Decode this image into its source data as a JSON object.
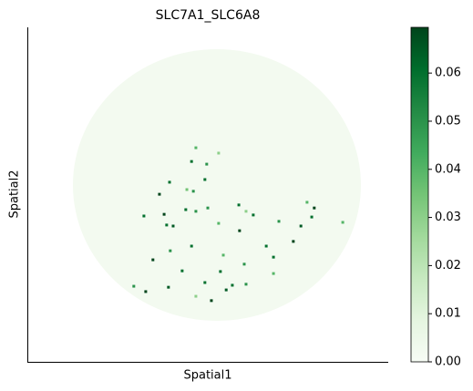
{
  "chart_data": {
    "type": "scatter",
    "title": "SLC7A1_SLC6A8",
    "xlabel": "Spatial1",
    "ylabel": "Spatial2",
    "xlim": [
      0,
      100
    ],
    "ylim": [
      0,
      100
    ],
    "x": [
      46.7,
      45.5,
      49.7,
      53.0,
      36.6,
      39.4,
      44.2,
      46.0,
      49.2,
      50.0,
      32.3,
      37.9,
      40.4,
      38.6,
      43.9,
      46.7,
      58.6,
      58.8,
      60.6,
      62.6,
      79.5,
      77.5,
      78.8,
      75.8,
      69.7,
      66.2,
      73.7,
      68.2,
      45.5,
      39.6,
      34.8,
      42.9,
      54.3,
      53.5,
      60.1,
      39.1,
      32.8,
      29.5,
      51.0,
      55.1,
      56.8,
      60.6,
      68.2,
      49.2,
      87.4,
      46.7,
      53.0
    ],
    "y": [
      64.0,
      59.9,
      59.1,
      62.4,
      50.1,
      53.7,
      51.5,
      51.0,
      54.5,
      46.0,
      43.6,
      44.1,
      40.6,
      40.9,
      45.5,
      45.0,
      46.9,
      39.2,
      45.0,
      43.9,
      46.0,
      47.7,
      43.3,
      40.6,
      42.0,
      34.6,
      36.0,
      31.3,
      34.6,
      33.2,
      30.5,
      27.2,
      31.9,
      27.0,
      29.2,
      22.3,
      21.0,
      22.6,
      18.3,
      21.5,
      22.9,
      23.2,
      26.4,
      23.7,
      41.7,
      19.6,
      41.4
    ],
    "values": [
      0.04,
      0.06,
      0.05,
      0.03,
      0.07,
      0.06,
      0.035,
      0.05,
      0.06,
      0.05,
      0.06,
      0.07,
      0.065,
      0.06,
      0.06,
      0.05,
      0.06,
      0.07,
      0.03,
      0.06,
      0.07,
      0.04,
      0.06,
      0.065,
      0.05,
      0.06,
      0.07,
      0.06,
      0.06,
      0.05,
      0.07,
      0.06,
      0.04,
      0.06,
      0.05,
      0.065,
      0.07,
      0.05,
      0.07,
      0.065,
      0.06,
      0.05,
      0.04,
      0.06,
      0.04,
      0.03,
      0.04
    ],
    "colormap": [
      "#f7fcf5",
      "#e5f5e0",
      "#c7e9c0",
      "#a1d99b",
      "#74c476",
      "#41ab5d",
      "#238b45",
      "#006d2c",
      "#00441b"
    ],
    "clim": [
      0,
      0.0695
    ],
    "cticks": [
      {
        "value": 0,
        "label": "0.00"
      },
      {
        "value": 0.01,
        "label": "0.01"
      },
      {
        "value": 0.02,
        "label": "0.02"
      },
      {
        "value": 0.03,
        "label": "0.03"
      },
      {
        "value": 0.04,
        "label": "0.04"
      },
      {
        "value": 0.05,
        "label": "0.05"
      },
      {
        "value": 0.06,
        "label": "0.06"
      }
    ]
  }
}
